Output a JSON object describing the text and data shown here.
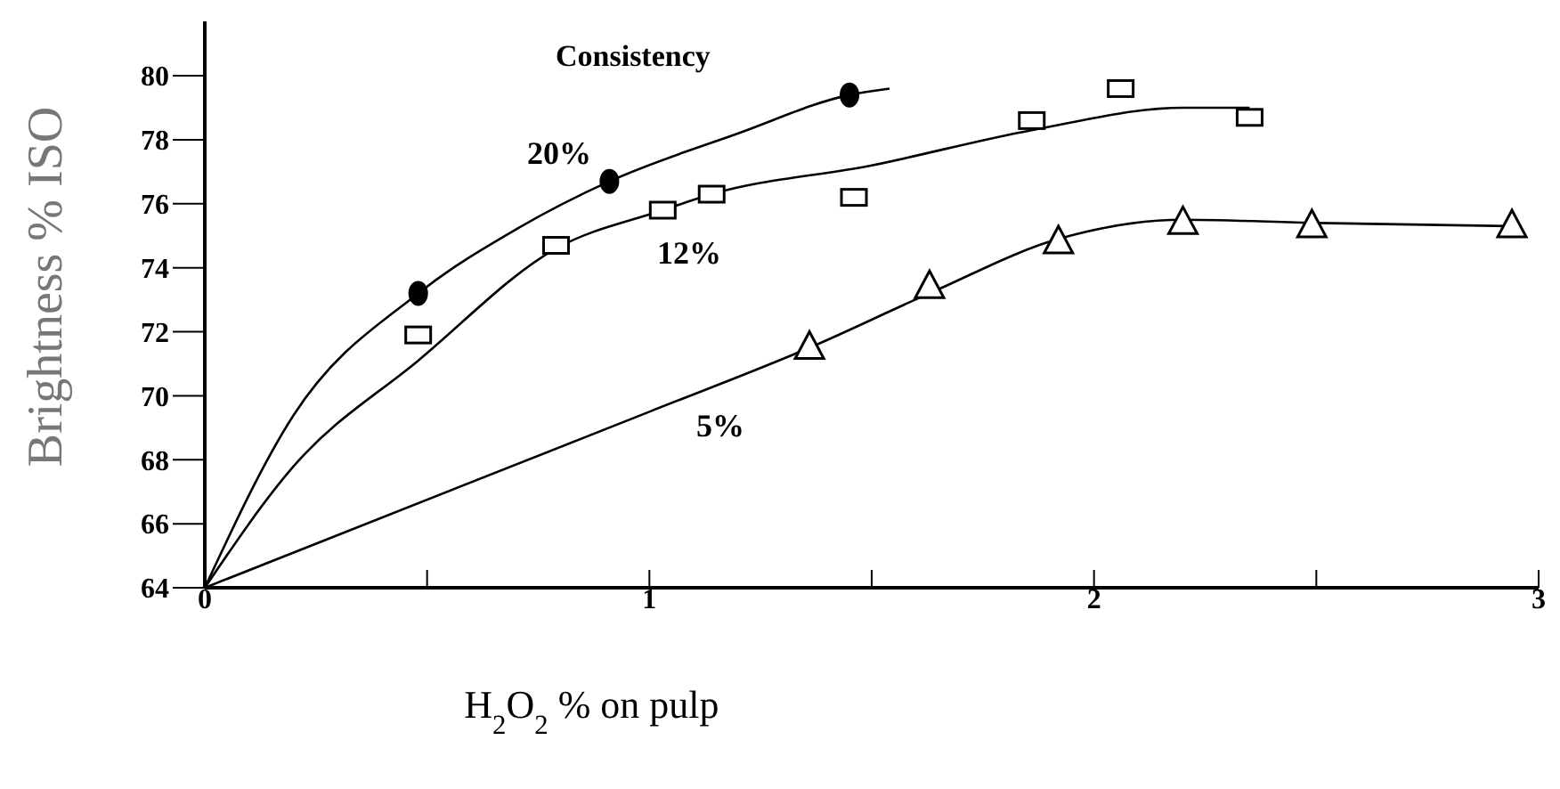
{
  "chart_data": {
    "type": "line",
    "xlabel": "H$_{2}$O$_{2}$ % on pulp",
    "ylabel": "Brightness    % ISO",
    "xlim": [
      0,
      3
    ],
    "ylim": [
      64,
      81.7
    ],
    "xticks": [
      0,
      {
        "value": 0.5,
        "label": null
      },
      1,
      {
        "value": 1.5,
        "label": null
      },
      2,
      {
        "value": 2.5,
        "label": null
      },
      3
    ],
    "yticks": [
      64,
      66,
      68,
      70,
      72,
      74,
      76,
      78,
      80
    ],
    "grid": false,
    "annotations": [
      "Consistency",
      "20%",
      "12%",
      "5%"
    ],
    "series": [
      {
        "color": "#000000",
        "marker": "none",
        "x": [
          0,
          0.2,
          0.48,
          0.7,
          0.91,
          1.2,
          1.45,
          1.54
        ],
        "values": [
          64,
          69.4,
          73.2,
          75.2,
          76.7,
          78.2,
          79.4,
          79.6
        ]
      },
      {
        "color": "#000000",
        "marker": "none",
        "x": [
          0,
          0.2,
          0.48,
          0.79,
          1.03,
          1.14,
          1.5,
          1.86,
          2.2,
          2.35
        ],
        "values": [
          64,
          67.8,
          71.1,
          74.6,
          75.8,
          76.3,
          77.2,
          78.3,
          79.0,
          79.0
        ]
      },
      {
        "color": "#000000",
        "marker": "none",
        "x": [
          0,
          1,
          1.36,
          1.63,
          1.92,
          2.2,
          2.5,
          2.94
        ],
        "values": [
          64,
          69.5,
          71.5,
          73.2,
          74.9,
          75.5,
          75.4,
          75.3
        ]
      },
      {
        "type": "scatter",
        "color": "#000000",
        "marker": "circle",
        "x": [
          0.48,
          0.91,
          1.45
        ],
        "values": [
          73.2,
          76.7,
          79.4
        ]
      },
      {
        "type": "scatter",
        "color": "#000000",
        "marker": "square",
        "x": [
          0.48,
          0.79,
          1.03,
          1.14,
          1.46,
          1.86,
          2.06,
          2.35
        ],
        "values": [
          71.9,
          74.7,
          75.8,
          76.3,
          76.2,
          78.6,
          79.6,
          78.7
        ]
      },
      {
        "type": "scatter",
        "color": "#000000",
        "marker": "triangle",
        "x": [
          1.36,
          1.63,
          1.92,
          2.2,
          2.49,
          2.94
        ],
        "values": [
          71.5,
          73.4,
          74.8,
          75.4,
          75.3,
          75.3
        ]
      }
    ]
  }
}
